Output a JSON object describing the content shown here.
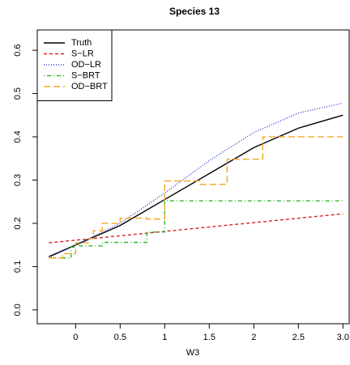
{
  "chart_data": {
    "type": "line",
    "title": "Species 13",
    "x_label": "W3",
    "xlim": [
      -0.43,
      3.07
    ],
    "ylim": [
      -0.032,
      0.647
    ],
    "xticks": [
      0.0,
      0.5,
      1.0,
      1.5,
      2.0,
      2.5,
      {
        "value": 3.0,
        "label": "3.0"
      }
    ],
    "yticks": [
      {
        "value": 0,
        "label": "0.0"
      },
      0.1,
      0.2,
      0.3,
      0.4,
      0.5,
      0.6
    ],
    "legend": "top-left",
    "series": [
      {
        "name": "Truth",
        "color": "#000000",
        "dash": "solid",
        "x": [
          -0.3,
          0,
          0.5,
          1.0,
          1.5,
          2.0,
          2.5,
          3.0
        ],
        "y": [
          0.123,
          0.15,
          0.195,
          0.255,
          0.315,
          0.375,
          0.42,
          0.45
        ]
      },
      {
        "name": "S−LR",
        "color": "#df2020",
        "dash": "dashed",
        "x": [
          -0.3,
          3.0
        ],
        "y": [
          0.155,
          0.222
        ]
      },
      {
        "name": "OD−LR",
        "color": "#2a3fd0",
        "dash": "dotted",
        "x": [
          -0.3,
          0,
          0.5,
          1.0,
          1.5,
          2.0,
          2.5,
          3.0
        ],
        "y": [
          0.12,
          0.15,
          0.2,
          0.27,
          0.345,
          0.41,
          0.455,
          0.478
        ]
      },
      {
        "name": "S−BRT",
        "color": "#2db82d",
        "dash": "dotdash",
        "x": [
          -0.3,
          -0.05,
          -0.05,
          0.0,
          0.0,
          0.3,
          0.3,
          0.8,
          0.8,
          1.0,
          1.0,
          3.0
        ],
        "y": [
          0.12,
          0.12,
          0.145,
          0.145,
          0.148,
          0.148,
          0.156,
          0.156,
          0.18,
          0.18,
          0.252,
          0.252
        ]
      },
      {
        "name": "OD−BRT",
        "color": "#f5a623",
        "dash": "longdash",
        "x": [
          -0.3,
          -0.15,
          -0.15,
          0.0,
          0.0,
          0.15,
          0.15,
          0.2,
          0.2,
          0.3,
          0.3,
          0.5,
          0.5,
          0.8,
          0.8,
          1.0,
          1.0,
          1.4,
          1.4,
          1.7,
          1.7,
          2.1,
          2.1,
          3.0
        ],
        "y": [
          0.12,
          0.12,
          0.13,
          0.13,
          0.155,
          0.155,
          0.165,
          0.165,
          0.183,
          0.183,
          0.2,
          0.2,
          0.212,
          0.212,
          0.21,
          0.21,
          0.298,
          0.298,
          0.29,
          0.29,
          0.348,
          0.348,
          0.4,
          0.4
        ]
      }
    ]
  }
}
